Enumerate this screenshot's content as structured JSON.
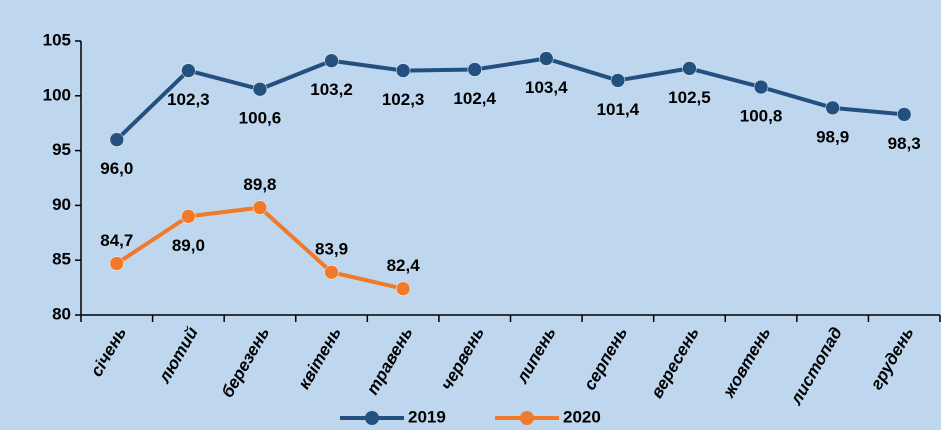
{
  "chart_data": {
    "type": "line",
    "categories": [
      "січень",
      "лютий",
      "березень",
      "квітень",
      "травень",
      "червень",
      "липень",
      "серпень",
      "вересень",
      "жовтень",
      "листопад",
      "грудень"
    ],
    "series": [
      {
        "name": "2019",
        "color": "#23507e",
        "values": [
          96.0,
          102.3,
          100.6,
          103.2,
          102.3,
          102.4,
          103.4,
          101.4,
          102.5,
          100.8,
          98.9,
          98.3
        ],
        "value_labels": [
          "96,0",
          "102,3",
          "100,6",
          "103,2",
          "102,3",
          "102,4",
          "103,4",
          "101,4",
          "102,5",
          "100,8",
          "98,9",
          "98,3"
        ]
      },
      {
        "name": "2020",
        "color": "#f07a2a",
        "values": [
          84.7,
          89.0,
          89.8,
          83.9,
          82.4,
          null,
          null,
          null,
          null,
          null,
          null,
          null
        ],
        "value_labels": [
          "84,7",
          "89,0",
          "89,8",
          "83,9",
          "82,4",
          null,
          null,
          null,
          null,
          null,
          null,
          null
        ]
      }
    ],
    "ylim": [
      80,
      105
    ],
    "yticks": [
      80,
      85,
      90,
      95,
      100,
      105
    ],
    "grid": false,
    "legend": "bottom"
  }
}
